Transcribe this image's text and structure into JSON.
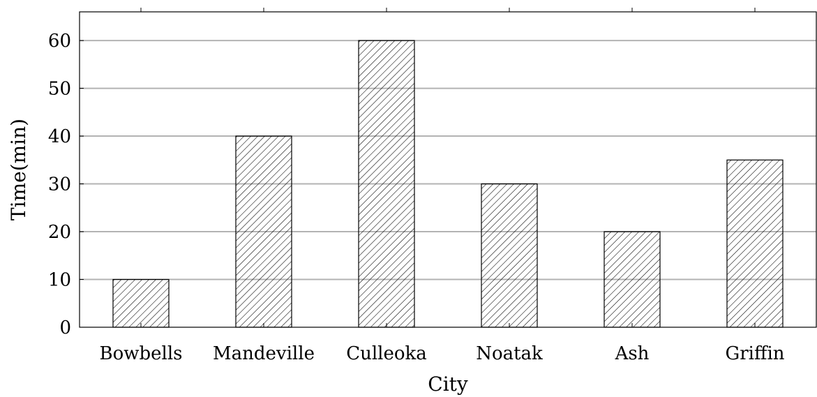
{
  "chart_data": {
    "type": "bar",
    "categories": [
      "Bowbells",
      "Mandeville",
      "Culleoka",
      "Noatak",
      "Ash",
      "Griffin"
    ],
    "values": [
      10,
      40,
      60,
      30,
      20,
      35
    ],
    "title": "",
    "xlabel": "City",
    "ylabel": "Time(min)",
    "ylim": [
      0,
      66
    ],
    "yticks": [
      0,
      10,
      20,
      30,
      40,
      50,
      60
    ],
    "grid": "horizontal",
    "bar_fill": "hatched",
    "colors": {
      "bar_stroke": "#000000",
      "grid": "#b3b3b3",
      "axis": "#000000"
    }
  }
}
